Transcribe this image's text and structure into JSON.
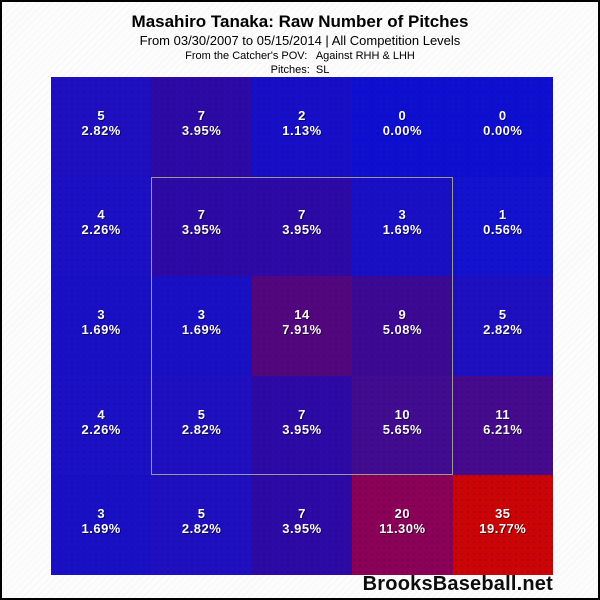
{
  "header": {
    "title": "Masahiro Tanaka: Raw Number of Pitches",
    "date_range_line": "From 03/30/2007 to 05/15/2014 | All Competition Levels",
    "pov_line": "From the Catcher's POV:   Against RHH & LHH",
    "pitch_type_line": "Pitches:  SL"
  },
  "footer": {
    "brand": "BrooksBaseball.net"
  },
  "chart_data": {
    "type": "heatmap",
    "title": "Masahiro Tanaka: Raw Number of Pitches",
    "subtitle": "From 03/30/2007 to 05/15/2014 | All Competition Levels",
    "view": "From the Catcher's POV: Against RHH & LHH",
    "pitch_type": "SL",
    "grid_size": {
      "rows": 5,
      "cols": 5
    },
    "cell_value_format": "pitch count over percentage of all pitches",
    "cell_text_color": "#ffffff",
    "cells": [
      [
        {
          "count": 5,
          "pct": "2.82%",
          "color": "#1e10c0"
        },
        {
          "count": 7,
          "pct": "3.95%",
          "color": "#2d0aa6"
        },
        {
          "count": 2,
          "pct": "1.13%",
          "color": "#170fc8"
        },
        {
          "count": 0,
          "pct": "0.00%",
          "color": "#0f0fd2"
        },
        {
          "count": 0,
          "pct": "0.00%",
          "color": "#0f0fd2"
        }
      ],
      [
        {
          "count": 4,
          "pct": "2.26%",
          "color": "#1b10c3"
        },
        {
          "count": 7,
          "pct": "3.95%",
          "color": "#2d0aa6"
        },
        {
          "count": 7,
          "pct": "3.95%",
          "color": "#2d0aa6"
        },
        {
          "count": 3,
          "pct": "1.69%",
          "color": "#1910c6"
        },
        {
          "count": 1,
          "pct": "0.56%",
          "color": "#1212cf"
        }
      ],
      [
        {
          "count": 3,
          "pct": "1.69%",
          "color": "#1910c6"
        },
        {
          "count": 3,
          "pct": "1.69%",
          "color": "#1910c6"
        },
        {
          "count": 14,
          "pct": "7.91%",
          "color": "#53077e"
        },
        {
          "count": 9,
          "pct": "5.08%",
          "color": "#3c0994"
        },
        {
          "count": 5,
          "pct": "2.82%",
          "color": "#1e10c0"
        }
      ],
      [
        {
          "count": 4,
          "pct": "2.26%",
          "color": "#1b10c3"
        },
        {
          "count": 5,
          "pct": "2.82%",
          "color": "#1e10c0"
        },
        {
          "count": 7,
          "pct": "3.95%",
          "color": "#2d0aa6"
        },
        {
          "count": 10,
          "pct": "5.65%",
          "color": "#420c90"
        },
        {
          "count": 11,
          "pct": "6.21%",
          "color": "#460a8e"
        }
      ],
      [
        {
          "count": 3,
          "pct": "1.69%",
          "color": "#1910c6"
        },
        {
          "count": 5,
          "pct": "2.82%",
          "color": "#1e10c0"
        },
        {
          "count": 7,
          "pct": "3.95%",
          "color": "#2d0aa6"
        },
        {
          "count": 20,
          "pct": "11.30%",
          "color": "#8b0158"
        },
        {
          "count": 35,
          "pct": "19.77%",
          "color": "#cb0505"
        }
      ]
    ],
    "strike_zone": {
      "border_color": "#9a9a92",
      "covers": "middle 3x3 cells of the 5x5 grid"
    },
    "color_scale_note": "blue = low frequency, purple = medium, red = high"
  }
}
